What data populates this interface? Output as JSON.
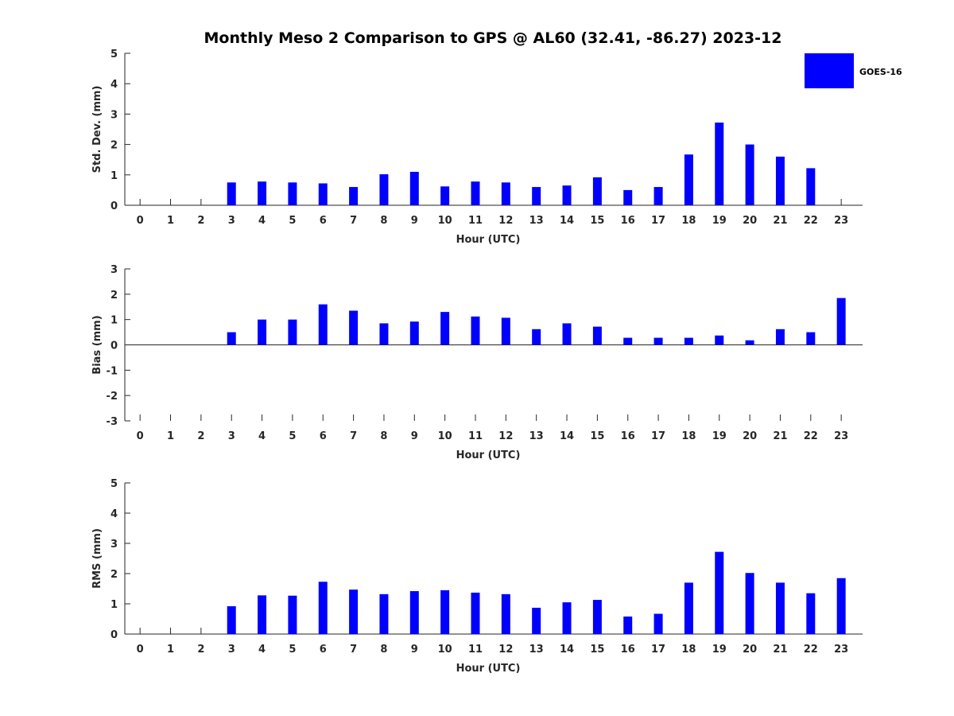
{
  "title": "Monthly Meso 2 Comparison to GPS @ AL60 (32.41, -86.27) 2023-12",
  "legend": {
    "label": "GOES-16",
    "color": "#0000ff",
    "placement": "top-right"
  },
  "chart_data": [
    {
      "type": "bar",
      "xlabel": "Hour (UTC)",
      "ylabel": "Std. Dev. (mm)",
      "ylim": [
        0,
        5
      ],
      "yticks": [
        0,
        1,
        2,
        3,
        4,
        5
      ],
      "categories": [
        "0",
        "1",
        "2",
        "3",
        "4",
        "5",
        "6",
        "7",
        "8",
        "9",
        "10",
        "11",
        "12",
        "13",
        "14",
        "15",
        "16",
        "17",
        "18",
        "19",
        "20",
        "21",
        "22",
        "23"
      ],
      "series": [
        {
          "name": "GOES-16",
          "color": "#0000ff",
          "values": [
            null,
            null,
            null,
            0.75,
            0.78,
            0.75,
            0.72,
            0.6,
            1.02,
            1.1,
            0.62,
            0.78,
            0.75,
            0.6,
            0.65,
            0.92,
            0.5,
            0.6,
            1.67,
            2.72,
            2.0,
            1.6,
            1.22,
            null
          ]
        }
      ],
      "grid": false
    },
    {
      "type": "bar",
      "xlabel": "Hour (UTC)",
      "ylabel": "Bias (mm)",
      "ylim": [
        -3,
        3
      ],
      "yticks": [
        -3,
        -2,
        -1,
        0,
        1,
        2,
        3
      ],
      "categories": [
        "0",
        "1",
        "2",
        "3",
        "4",
        "5",
        "6",
        "7",
        "8",
        "9",
        "10",
        "11",
        "12",
        "13",
        "14",
        "15",
        "16",
        "17",
        "18",
        "19",
        "20",
        "21",
        "22",
        "23"
      ],
      "series": [
        {
          "name": "GOES-16",
          "color": "#0000ff",
          "values": [
            null,
            null,
            null,
            0.5,
            1.0,
            1.0,
            1.6,
            1.35,
            0.85,
            0.92,
            1.3,
            1.12,
            1.07,
            0.62,
            0.85,
            0.72,
            0.28,
            0.28,
            0.28,
            0.37,
            0.18,
            0.62,
            0.5,
            1.85
          ]
        }
      ],
      "grid": false
    },
    {
      "type": "bar",
      "xlabel": "Hour (UTC)",
      "ylabel": "RMS (mm)",
      "ylim": [
        0,
        5
      ],
      "yticks": [
        0,
        1,
        2,
        3,
        4,
        5
      ],
      "categories": [
        "0",
        "1",
        "2",
        "3",
        "4",
        "5",
        "6",
        "7",
        "8",
        "9",
        "10",
        "11",
        "12",
        "13",
        "14",
        "15",
        "16",
        "17",
        "18",
        "19",
        "20",
        "21",
        "22",
        "23"
      ],
      "series": [
        {
          "name": "GOES-16",
          "color": "#0000ff",
          "values": [
            null,
            null,
            null,
            0.92,
            1.28,
            1.27,
            1.73,
            1.47,
            1.32,
            1.42,
            1.45,
            1.37,
            1.32,
            0.87,
            1.05,
            1.13,
            0.58,
            0.67,
            1.7,
            2.72,
            2.02,
            1.7,
            1.35,
            1.85
          ]
        }
      ],
      "grid": false
    }
  ]
}
